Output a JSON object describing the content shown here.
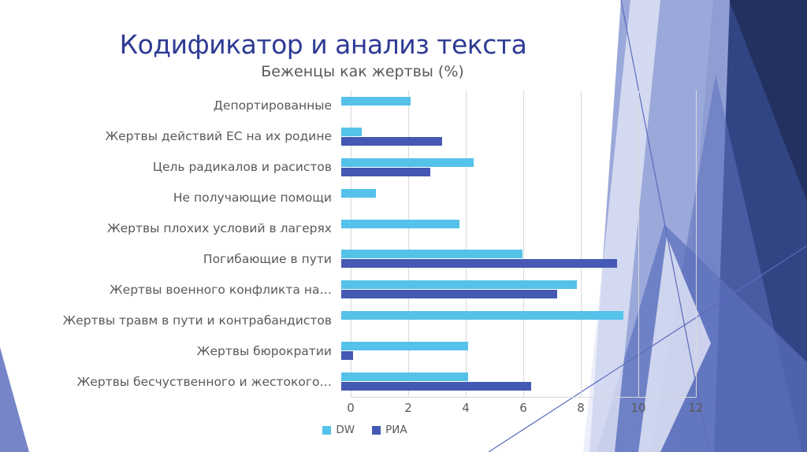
{
  "slide": {
    "title": "Кодификатор и анализ текста"
  },
  "chart_data": {
    "type": "bar",
    "orientation": "horizontal",
    "title": "Беженцы как жертвы (%)",
    "categories": [
      "Депортированные",
      "Жертвы действий ЕС на их родине",
      "Цель радикалов и расистов",
      "Не получающие помощи",
      "Жертвы плохих условий в лагерях",
      "Погибающие в пути",
      "Жертвы военного конфликта на…",
      "Жертвы травм в пути и контрабандистов",
      "Жертвы бюрократии",
      "Жертвы бесчуственного и жестокого…"
    ],
    "series": [
      {
        "name": "DW",
        "color": "#55C2EA",
        "values": [
          2.4,
          0.7,
          4.6,
          1.2,
          4.1,
          6.3,
          8.2,
          9.8,
          4.4,
          4.4
        ]
      },
      {
        "name": "РИА",
        "color": "#4458B4",
        "values": [
          0,
          3.5,
          3.1,
          0,
          0,
          9.6,
          7.5,
          0,
          0.4,
          6.6
        ]
      }
    ],
    "xlim": [
      0,
      12
    ],
    "xticks": [
      0,
      2,
      4,
      6,
      8,
      10,
      12
    ],
    "grid": "vertical",
    "legend_position": "bottom"
  },
  "colors": {
    "slide_title": "#2E3B94",
    "chart_text": "#595959",
    "gridline": "#D9D9D9",
    "background": "#FFFFFF",
    "decor_navy_dark": "#22315F",
    "decor_navy_mid": "#34488A",
    "decor_periwinkle_light": "#96A3D8",
    "decor_periwinkle_mid": "#5D70BE",
    "decor_pale": "#E6EAF7",
    "decor_line": "#5B6CBD"
  }
}
